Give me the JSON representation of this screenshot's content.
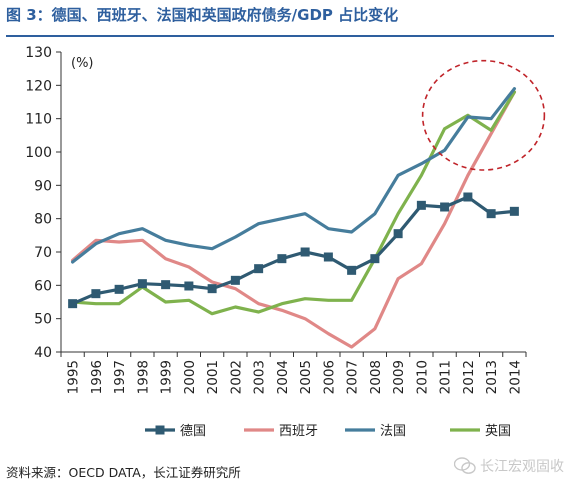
{
  "title": "图 3：德国、西班牙、法国和英国政府债务/GDP 占比变化",
  "source": "资料来源：OECD DATA，长江证券研究所",
  "watermark": "长江宏观固收",
  "colors": {
    "germany": "#2f5a72",
    "spain": "#e08887",
    "france": "#467d9c",
    "uk": "#7fb24d",
    "highlight": "#c0242a",
    "title": "#2e5f9e"
  },
  "chart_data": {
    "type": "line",
    "unit_label": "(%)",
    "x": [
      "1995",
      "1996",
      "1997",
      "1998",
      "1999",
      "2000",
      "2001",
      "2002",
      "2003",
      "2004",
      "2005",
      "2006",
      "2007",
      "2008",
      "2009",
      "2010",
      "2011",
      "2012",
      "2013",
      "2014"
    ],
    "ylim": [
      40,
      130
    ],
    "yticks": [
      40,
      50,
      60,
      70,
      80,
      90,
      100,
      110,
      120,
      130
    ],
    "grid": false,
    "legend_position": "bottom",
    "highlight": {
      "shape": "dashed-ellipse",
      "x_range": [
        "2011",
        "2014"
      ],
      "y_range": [
        100,
        122
      ]
    },
    "series": [
      {
        "name": "德国",
        "key": "germany",
        "marker": "square",
        "values": [
          54.5,
          57.5,
          58.8,
          60.5,
          60.2,
          59.8,
          59.0,
          61.5,
          65.0,
          68.0,
          70.0,
          68.5,
          64.5,
          68.0,
          75.5,
          84.0,
          83.5,
          86.5,
          81.5,
          82.2
        ]
      },
      {
        "name": "西班牙",
        "key": "spain",
        "marker": "none",
        "values": [
          67.5,
          73.5,
          73.0,
          73.5,
          68.0,
          65.5,
          61.0,
          59.0,
          54.5,
          52.5,
          50.0,
          45.5,
          41.5,
          47.0,
          62.0,
          66.5,
          78.5,
          93.0,
          105.5,
          118.0
        ]
      },
      {
        "name": "法国",
        "key": "france",
        "marker": "none",
        "values": [
          67.0,
          72.5,
          75.5,
          77.0,
          73.5,
          72.0,
          71.0,
          74.5,
          78.5,
          80.0,
          81.5,
          77.0,
          76.0,
          81.5,
          93.0,
          96.5,
          100.5,
          110.5,
          110.0,
          119.0
        ]
      },
      {
        "name": "英国",
        "key": "uk",
        "marker": "none",
        "values": [
          55.0,
          54.5,
          54.5,
          59.5,
          55.0,
          55.5,
          51.5,
          53.5,
          52.0,
          54.5,
          56.0,
          55.5,
          55.5,
          68.0,
          81.5,
          93.0,
          107.0,
          111.0,
          106.5,
          118.0
        ]
      }
    ]
  }
}
